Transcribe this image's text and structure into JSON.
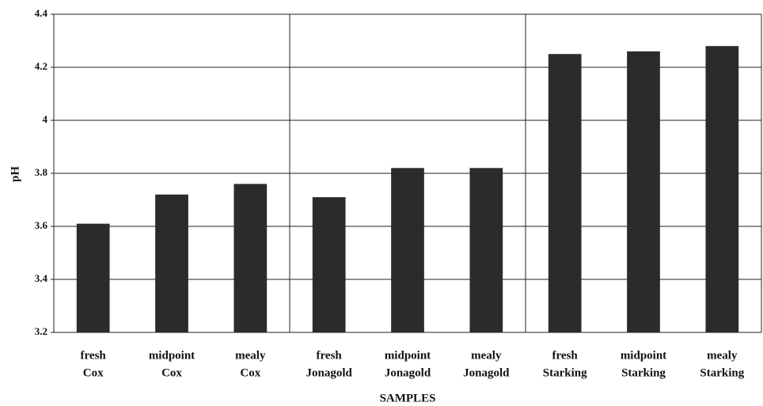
{
  "chart_data": {
    "type": "bar",
    "xlabel": "SAMPLES",
    "ylabel": "pH",
    "categories": [
      [
        "fresh",
        "Cox"
      ],
      [
        "midpoint",
        "Cox"
      ],
      [
        "mealy",
        "Cox"
      ],
      [
        "fresh",
        "Jonagold"
      ],
      [
        "midpoint",
        "Jonagold"
      ],
      [
        "mealy",
        "Jonagold"
      ],
      [
        "fresh",
        "Starking"
      ],
      [
        "midpoint",
        "Starking"
      ],
      [
        "mealy",
        "Starking"
      ]
    ],
    "values": [
      3.61,
      3.72,
      3.76,
      3.71,
      3.82,
      3.82,
      4.25,
      4.26,
      4.28
    ],
    "color": "#2b2b2b",
    "ylim": [
      3.2,
      4.4
    ],
    "yticks": [
      3.2,
      3.4,
      3.6,
      3.8,
      4,
      4.2,
      4.4
    ],
    "grid": true
  }
}
